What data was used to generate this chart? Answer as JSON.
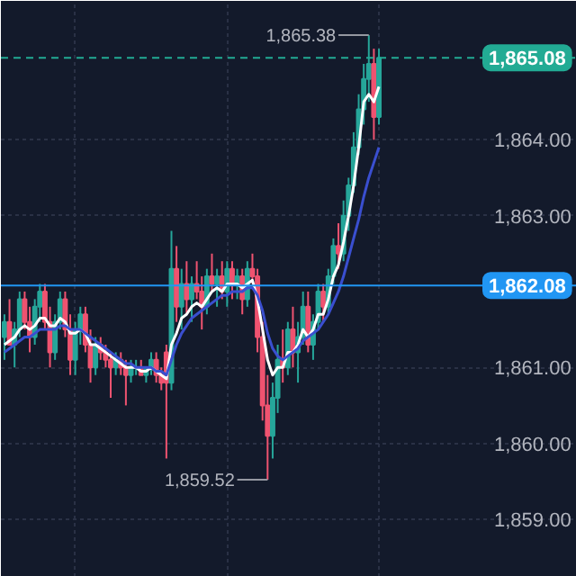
{
  "chart_data": {
    "type": "candlestick",
    "categories": [
      null,
      null,
      null,
      null,
      null,
      null,
      null,
      null,
      null,
      null,
      null,
      null,
      null,
      null,
      null,
      null,
      null,
      null,
      null,
      null,
      null,
      null,
      null,
      null,
      null,
      null,
      null,
      null,
      null,
      null,
      null,
      null,
      null,
      null,
      null,
      null,
      null,
      null,
      null,
      null,
      null,
      null,
      null,
      null,
      null,
      null,
      null,
      null,
      null,
      null,
      null,
      null,
      null,
      null,
      null,
      null,
      null,
      null,
      null,
      null,
      null,
      null,
      null,
      null,
      null,
      null,
      null,
      null,
      null,
      null,
      null,
      null,
      null,
      null,
      null
    ],
    "ohlc": [
      [
        1861.4,
        1861.7,
        1861.1,
        1861.6
      ],
      [
        1861.6,
        1861.9,
        1861.3,
        1861.3
      ],
      [
        1861.3,
        1861.6,
        1861.0,
        1861.5
      ],
      [
        1861.5,
        1862.0,
        1861.4,
        1861.9
      ],
      [
        1861.9,
        1862.0,
        1861.5,
        1861.6
      ],
      [
        1861.6,
        1861.8,
        1861.2,
        1861.4
      ],
      [
        1861.4,
        1861.9,
        1861.3,
        1861.8
      ],
      [
        1861.8,
        1862.1,
        1861.6,
        1862.0
      ],
      [
        1862.0,
        1862.1,
        1861.5,
        1861.6
      ],
      [
        1861.6,
        1861.8,
        1861.0,
        1861.2
      ],
      [
        1861.2,
        1861.7,
        1861.1,
        1861.6
      ],
      [
        1861.6,
        1862.0,
        1861.5,
        1861.9
      ],
      [
        1861.9,
        1862.0,
        1861.4,
        1861.5
      ],
      [
        1861.5,
        1861.7,
        1860.9,
        1861.1
      ],
      [
        1861.1,
        1861.6,
        1860.9,
        1861.5
      ],
      [
        1861.5,
        1861.8,
        1861.3,
        1861.7
      ],
      [
        1861.7,
        1861.8,
        1861.2,
        1861.3
      ],
      [
        1861.3,
        1861.5,
        1860.8,
        1861.0
      ],
      [
        1861.0,
        1861.4,
        1860.9,
        1861.3
      ],
      [
        1861.3,
        1861.4,
        1861.1,
        1861.2
      ],
      [
        1861.2,
        1861.3,
        1861.0,
        1861.1
      ],
      [
        1861.1,
        1861.2,
        1860.6,
        1861.0
      ],
      [
        1861.0,
        1861.2,
        1860.9,
        1861.1
      ],
      [
        1861.1,
        1861.2,
        1860.9,
        1861.0
      ],
      [
        1861.0,
        1861.1,
        1860.5,
        1860.9
      ],
      [
        1860.9,
        1861.1,
        1860.8,
        1861.0
      ],
      [
        1861.0,
        1861.1,
        1860.9,
        1861.0
      ],
      [
        1861.0,
        1861.1,
        1860.9,
        1860.9
      ],
      [
        1860.9,
        1861.0,
        1860.8,
        1861.0
      ],
      [
        1861.0,
        1861.2,
        1860.9,
        1861.1
      ],
      [
        1861.1,
        1861.2,
        1860.8,
        1860.9
      ],
      [
        1860.9,
        1861.0,
        1860.7,
        1860.8
      ],
      [
        1861.2,
        1861.3,
        1859.8,
        1860.8
      ],
      [
        1860.8,
        1862.8,
        1860.7,
        1862.3
      ],
      [
        1862.3,
        1862.6,
        1861.6,
        1861.8
      ],
      [
        1861.8,
        1862.3,
        1861.5,
        1862.1
      ],
      [
        1862.1,
        1862.4,
        1861.7,
        1861.9
      ],
      [
        1861.9,
        1862.2,
        1861.6,
        1862.1
      ],
      [
        1862.1,
        1862.4,
        1861.9,
        1862.0
      ],
      [
        1862.0,
        1862.2,
        1861.5,
        1861.8
      ],
      [
        1861.8,
        1862.3,
        1861.7,
        1862.2
      ],
      [
        1862.2,
        1862.5,
        1862.0,
        1862.1
      ],
      [
        1862.1,
        1862.3,
        1861.8,
        1862.2
      ],
      [
        1862.2,
        1862.4,
        1861.9,
        1862.0
      ],
      [
        1862.0,
        1862.4,
        1861.8,
        1862.3
      ],
      [
        1862.3,
        1862.4,
        1861.9,
        1862.1
      ],
      [
        1862.1,
        1862.3,
        1861.9,
        1862.2
      ],
      [
        1862.2,
        1862.3,
        1861.7,
        1861.9
      ],
      [
        1861.9,
        1862.4,
        1861.8,
        1862.3
      ],
      [
        1862.3,
        1862.5,
        1862.1,
        1862.2
      ],
      [
        1862.2,
        1862.3,
        1861.2,
        1861.4
      ],
      [
        1861.4,
        1861.6,
        1860.3,
        1860.5
      ],
      [
        1860.5,
        1860.9,
        1859.52,
        1860.1
      ],
      [
        1860.1,
        1860.8,
        1859.8,
        1860.6
      ],
      [
        1860.6,
        1861.3,
        1860.4,
        1861.1
      ],
      [
        1861.1,
        1861.5,
        1860.8,
        1861.0
      ],
      [
        1861.0,
        1861.6,
        1860.9,
        1861.5
      ],
      [
        1861.5,
        1861.8,
        1861.0,
        1861.2
      ],
      [
        1861.2,
        1861.6,
        1860.8,
        1861.4
      ],
      [
        1861.4,
        1862.0,
        1861.3,
        1861.8
      ],
      [
        1861.8,
        1862.0,
        1861.2,
        1861.3
      ],
      [
        1861.3,
        1861.7,
        1861.1,
        1861.6
      ],
      [
        1861.6,
        1862.1,
        1861.5,
        1862.0
      ],
      [
        1862.0,
        1862.1,
        1861.6,
        1861.8
      ],
      [
        1861.8,
        1862.3,
        1861.7,
        1862.2
      ],
      [
        1862.2,
        1862.7,
        1862.1,
        1862.6
      ],
      [
        1862.6,
        1862.9,
        1862.3,
        1862.5
      ],
      [
        1862.5,
        1863.2,
        1862.4,
        1863.0
      ],
      [
        1863.0,
        1863.5,
        1862.8,
        1863.4
      ],
      [
        1863.4,
        1864.1,
        1863.3,
        1863.9
      ],
      [
        1863.9,
        1864.6,
        1863.8,
        1864.4
      ],
      [
        1864.4,
        1865.0,
        1864.2,
        1864.8
      ],
      [
        1864.8,
        1865.38,
        1864.5,
        1865.0
      ],
      [
        1865.0,
        1865.2,
        1864.0,
        1864.3
      ],
      [
        1864.3,
        1865.2,
        1864.2,
        1865.08
      ]
    ],
    "colors": [
      "#26a69a",
      "#ef5370",
      "#26a69a",
      "#26a69a",
      "#ef5370",
      "#ef5370",
      "#26a69a",
      "#26a69a",
      "#ef5370",
      "#ef5370",
      "#26a69a",
      "#26a69a",
      "#ef5370",
      "#ef5370",
      "#26a69a",
      "#26a69a",
      "#ef5370",
      "#ef5370",
      "#26a69a",
      "#ef5370",
      "#ef5370",
      "#ef5370",
      "#26a69a",
      "#ef5370",
      "#ef5370",
      "#26a69a",
      "#26a69a",
      "#ef5370",
      "#26a69a",
      "#26a69a",
      "#ef5370",
      "#ef5370",
      "#ef5370",
      "#26a69a",
      "#ef5370",
      "#26a69a",
      "#ef5370",
      "#26a69a",
      "#ef5370",
      "#ef5370",
      "#26a69a",
      "#ef5370",
      "#26a69a",
      "#ef5370",
      "#26a69a",
      "#ef5370",
      "#26a69a",
      "#ef5370",
      "#26a69a",
      "#ef5370",
      "#ef5370",
      "#ef5370",
      "#ef5370",
      "#26a69a",
      "#26a69a",
      "#ef5370",
      "#26a69a",
      "#ef5370",
      "#26a69a",
      "#26a69a",
      "#ef5370",
      "#26a69a",
      "#26a69a",
      "#ef5370",
      "#26a69a",
      "#26a69a",
      "#ef5370",
      "#26a69a",
      "#26a69a",
      "#26a69a",
      "#26a69a",
      "#26a69a",
      "#26a69a",
      "#ef5370",
      "#26a69a"
    ],
    "series": [
      {
        "type": "line",
        "color": "#ffffff",
        "values": [
          1861.3,
          1861.35,
          1861.4,
          1861.5,
          1861.55,
          1861.5,
          1861.55,
          1861.65,
          1861.65,
          1861.55,
          1861.55,
          1861.65,
          1861.6,
          1861.45,
          1861.45,
          1861.5,
          1861.45,
          1861.3,
          1861.3,
          1861.25,
          1861.2,
          1861.15,
          1861.1,
          1861.05,
          1861.0,
          1861.0,
          1861.0,
          1860.95,
          1860.95,
          1861.0,
          1860.95,
          1860.9,
          1860.85,
          1861.3,
          1861.45,
          1861.65,
          1861.7,
          1861.8,
          1861.85,
          1861.8,
          1861.9,
          1862.0,
          1862.05,
          1862.0,
          1862.1,
          1862.1,
          1862.1,
          1862.05,
          1862.1,
          1862.15,
          1861.9,
          1861.5,
          1861.1,
          1860.9,
          1861.0,
          1861.0,
          1861.2,
          1861.2,
          1861.3,
          1861.5,
          1861.4,
          1861.5,
          1861.7,
          1861.7,
          1861.9,
          1862.2,
          1862.35,
          1862.65,
          1863.0,
          1863.4,
          1863.9,
          1864.5,
          1864.6,
          1864.5,
          1864.7
        ]
      },
      {
        "type": "line",
        "color": "#3a4fd0",
        "values": [
          1861.2,
          1861.25,
          1861.3,
          1861.35,
          1861.4,
          1861.4,
          1861.45,
          1861.5,
          1861.5,
          1861.5,
          1861.5,
          1861.55,
          1861.55,
          1861.5,
          1861.5,
          1861.5,
          1861.45,
          1861.4,
          1861.35,
          1861.3,
          1861.25,
          1861.2,
          1861.15,
          1861.1,
          1861.05,
          1861.05,
          1861.0,
          1861.0,
          1861.0,
          1861.0,
          1860.95,
          1860.95,
          1860.9,
          1861.1,
          1861.3,
          1861.45,
          1861.55,
          1861.65,
          1861.7,
          1861.75,
          1861.8,
          1861.85,
          1861.9,
          1861.95,
          1861.95,
          1862.0,
          1862.0,
          1862.0,
          1862.05,
          1862.05,
          1861.95,
          1861.75,
          1861.45,
          1861.25,
          1861.15,
          1861.1,
          1861.15,
          1861.2,
          1861.25,
          1861.35,
          1861.4,
          1861.45,
          1861.5,
          1861.6,
          1861.7,
          1861.85,
          1862.0,
          1862.2,
          1862.45,
          1862.7,
          1862.95,
          1863.25,
          1863.5,
          1863.7,
          1863.9
        ]
      }
    ],
    "ylim": [
      1858.24,
      1865.83
    ],
    "yticks": [
      {
        "value": 1859,
        "label": "1,859.00"
      },
      {
        "value": 1860,
        "label": "1,860.00"
      },
      {
        "value": 1861,
        "label": "1,861.00"
      },
      {
        "value": 1863,
        "label": "1,863.00"
      },
      {
        "value": 1864,
        "label": "1,864.00"
      }
    ],
    "ref_lines": [
      {
        "axis": "y",
        "value": 1865.08,
        "label": "1,865.08",
        "color": "#22ab94",
        "line_style": "dashed"
      },
      {
        "axis": "y",
        "value": 1862.08,
        "label": "1,862.08",
        "color": "#2196f3",
        "line_style": "solid"
      }
    ],
    "annotations": [
      "1,865.38",
      "1,859.52"
    ],
    "grid": true,
    "tick_labels": "y"
  }
}
